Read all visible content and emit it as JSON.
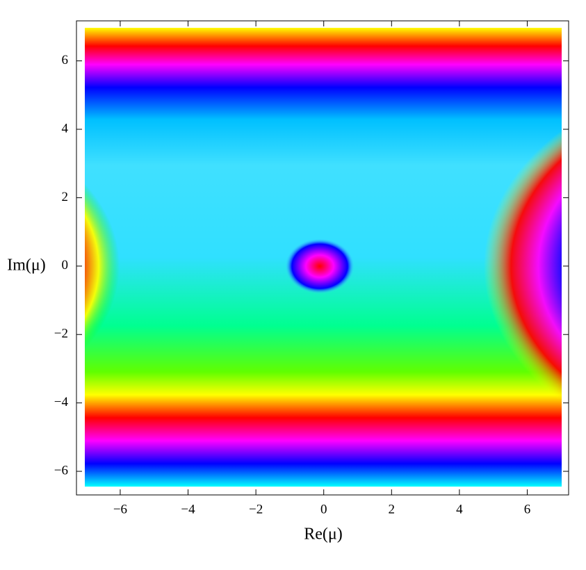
{
  "chart_data": {
    "type": "domain-coloring",
    "x_label": "Re(μ)",
    "y_label": "Im(μ)",
    "xlim": [
      -7.29,
      7.22
    ],
    "ylim": [
      -6.69,
      7.17
    ],
    "xticks": [
      {
        "value": -6,
        "label": "−6"
      },
      {
        "value": -4,
        "label": "−4"
      },
      {
        "value": -2,
        "label": "−2"
      },
      0,
      2,
      4,
      6
    ],
    "yticks": [
      {
        "value": -6,
        "label": "−6"
      },
      {
        "value": -4,
        "label": "−4"
      },
      {
        "value": -2,
        "label": "−2"
      },
      0,
      2,
      4,
      6
    ]
  }
}
